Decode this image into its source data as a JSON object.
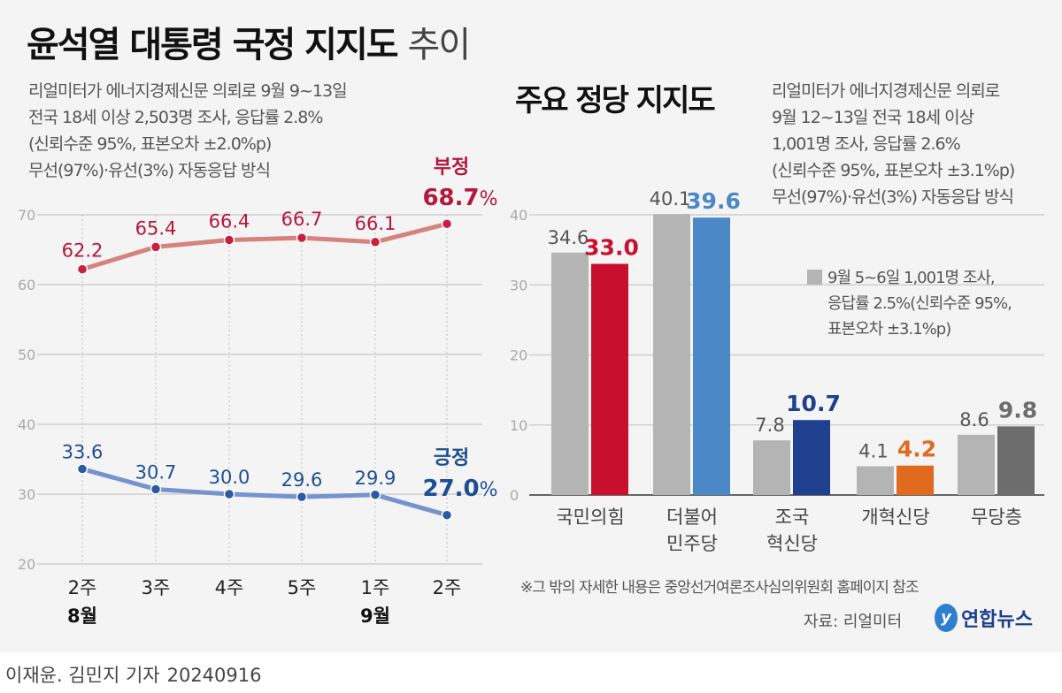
{
  "left": {
    "title_bold": "윤석열 대통령 국정 지지도",
    "title_light": "추이",
    "note_lines": [
      "리얼미터가 에너지경제신문 의뢰로 9월 9~13일",
      "전국 18세 이상 2,503명 조사, 응답률 2.8%",
      "(신뢰수준 95%, 표본오차 ±2.0%p)",
      "무선(97%)·유선(3%) 자동응답 방식"
    ]
  },
  "right": {
    "title": "주요 정당 지지도",
    "note_lines": [
      "리얼미터가 에너지경제신문 의뢰로",
      "9월 12~13일 전국 18세 이상",
      "1,001명 조사, 응답률 2.6%",
      "(신뢰수준 95%, 표본오차 ±3.1%p)",
      "무선(97%)·유선(3%) 자동응답 방식"
    ],
    "legend_lines": [
      "9월 5~6일 1,001명 조사,",
      "응답률 2.5%(신뢰수준 95%,",
      "표본오차 ±3.1%p)"
    ],
    "footnote": "※그 밖의 자세한 내용은 중앙선거여론조사심의위원회 홈페이지 참조",
    "source": "자료: 리얼미터"
  },
  "logo": "연합뉴스",
  "byline": {
    "authors": "이재윤. 김민지 기자",
    "date": "20240916"
  },
  "chart_data": [
    {
      "type": "line",
      "title": "윤석열 대통령 국정 지지도 추이",
      "categories": [
        "2주",
        "3주",
        "4주",
        "5주",
        "1주",
        "2주"
      ],
      "month_labels": [
        {
          "index": 0,
          "label": "8월"
        },
        {
          "index": 4,
          "label": "9월"
        }
      ],
      "ylim": [
        20,
        70
      ],
      "yticks": [
        20,
        30,
        40,
        50,
        60,
        70
      ],
      "grid": true,
      "series": [
        {
          "name": "부정",
          "values": [
            62.2,
            65.4,
            66.4,
            66.7,
            66.1,
            68.7
          ],
          "line_color": "#d4837f",
          "label_color": "#b5173d",
          "dot_color": "#c8203f"
        },
        {
          "name": "긍정",
          "values": [
            33.6,
            30.7,
            30.0,
            29.6,
            29.9,
            27.0
          ],
          "line_color": "#7594cf",
          "label_color": "#1d4f93",
          "dot_color": "#2a5aa0"
        }
      ],
      "unit": "%"
    },
    {
      "type": "bar",
      "title": "주요 정당 지지도",
      "categories": [
        [
          "국민의힘"
        ],
        [
          "더불어",
          "민주당"
        ],
        [
          "조국",
          "혁신당"
        ],
        [
          "개혁신당"
        ],
        [
          "무당층"
        ]
      ],
      "ylim": [
        0,
        40
      ],
      "yticks": [
        0,
        10,
        20,
        30,
        40
      ],
      "grid": true,
      "series": [
        {
          "name": "9월 5~6일",
          "values": [
            34.6,
            40.1,
            7.8,
            4.1,
            8.6
          ],
          "color": "#b4b4b4"
        },
        {
          "name": "9월 12~13일",
          "values": [
            33.0,
            39.6,
            10.7,
            4.2,
            9.8
          ],
          "colors": [
            "#c8102e",
            "#4b88c8",
            "#1f3f8f",
            "#e06a1e",
            "#6d6d6d"
          ]
        }
      ],
      "legend": "right"
    }
  ]
}
